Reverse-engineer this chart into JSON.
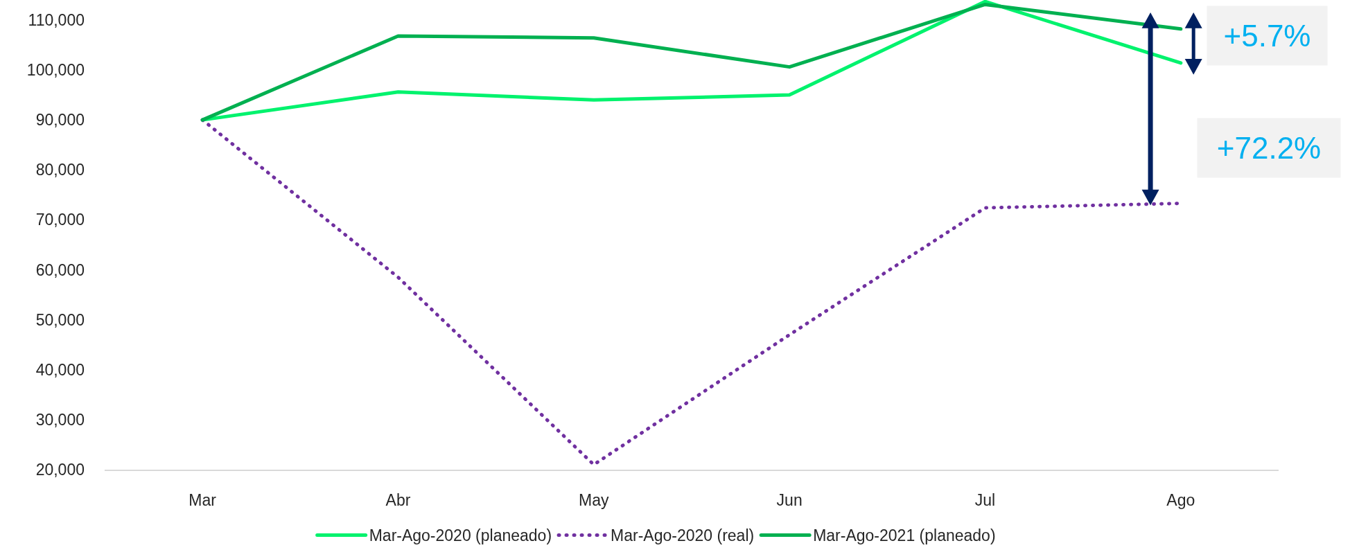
{
  "chart_data": {
    "type": "line",
    "categories": [
      "Mar",
      "Abr",
      "May",
      "Jun",
      "Jul",
      "Ago"
    ],
    "series": [
      {
        "name": "Mar-Ago-2020 (planeado)",
        "color": "#00f26d",
        "values": [
          90000,
          95600,
          94000,
          95000,
          113700,
          101400
        ]
      },
      {
        "name": "Mar-Ago-2020 (real)",
        "color": "#7030a0",
        "values": [
          90000,
          58500,
          21000,
          47000,
          72400,
          73300
        ],
        "line_style": "dotted"
      },
      {
        "name": "Mar-Ago-2021 (planeado)",
        "color": "#00b050",
        "values": [
          90000,
          106800,
          106400,
          100600,
          113100,
          108200
        ]
      }
    ],
    "ylim": [
      20000,
      114000
    ],
    "yticks": [
      {
        "value": 20000,
        "label": "20,000"
      },
      {
        "value": 30000,
        "label": "30,000"
      },
      {
        "value": 40000,
        "label": "40,000"
      },
      {
        "value": 50000,
        "label": "50,000"
      },
      {
        "value": 60000,
        "label": "60,000"
      },
      {
        "value": 70000,
        "label": "70,000"
      },
      {
        "value": 80000,
        "label": "80,000"
      },
      {
        "value": 90000,
        "label": "90,000"
      },
      {
        "value": 100000,
        "label": "100,000"
      },
      {
        "value": 110000,
        "label": "110,000"
      }
    ],
    "grid": false,
    "legend": "bottom",
    "line_style": "solid",
    "annotations": [
      "+5.7%",
      "+72.2%"
    ]
  }
}
